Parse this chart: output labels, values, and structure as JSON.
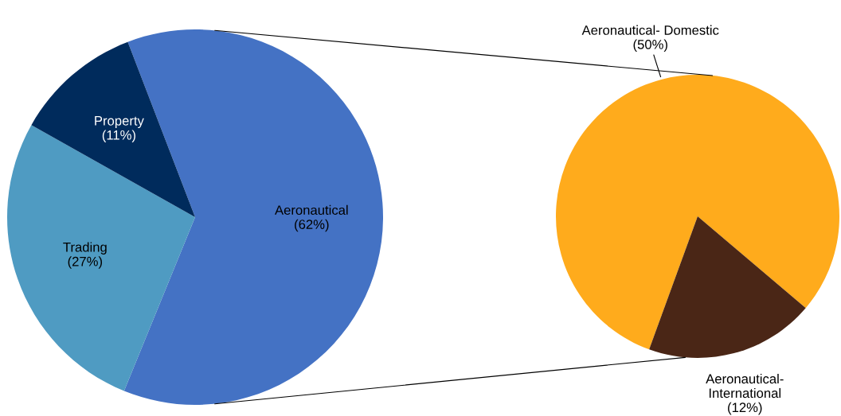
{
  "chart_data": [
    {
      "type": "pie",
      "categories": [
        "Aeronautical",
        "Trading",
        "Property"
      ],
      "values": [
        62,
        27,
        11
      ],
      "colors": [
        "#4472c4",
        "#4f9bc2",
        "#002b5c"
      ],
      "value_labels": [
        "(62%)",
        "(27%)",
        "(11%)"
      ]
    },
    {
      "type": "pie",
      "categories": [
        "Aeronautical- Domestic",
        "Aeronautical-\nInternational"
      ],
      "values": [
        50,
        12
      ],
      "colors": [
        "#ffab1c",
        "#4a2616"
      ],
      "value_labels": [
        "(50%)",
        "(12%)"
      ]
    }
  ]
}
